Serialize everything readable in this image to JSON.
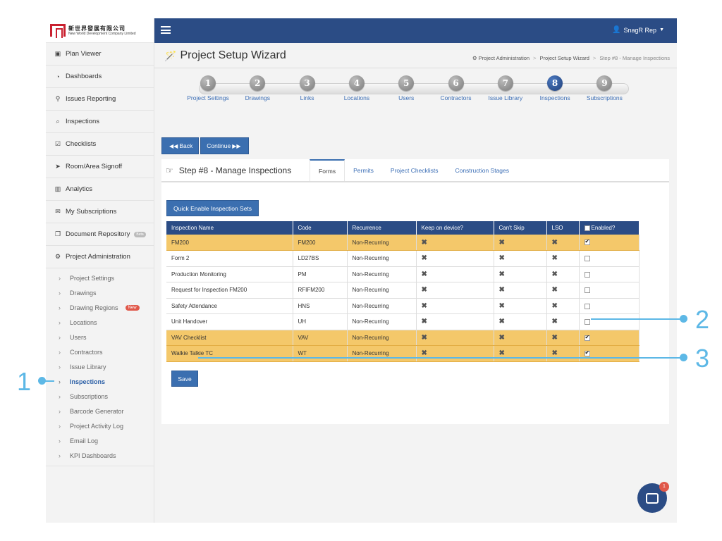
{
  "logo": {
    "cn": "新世界發展有限公司",
    "en": "New World Development Company Limited"
  },
  "sidebar": {
    "items": [
      {
        "label": "Plan Viewer",
        "icon": "image-icon",
        "glyph": "▣"
      },
      {
        "label": "Dashboards",
        "icon": "dashboard-icon",
        "glyph": "◔"
      },
      {
        "label": "Issues Reporting",
        "icon": "map-marker-icon",
        "glyph": "⚲"
      },
      {
        "label": "Inspections",
        "icon": "search-icon",
        "glyph": "⌕"
      },
      {
        "label": "Checklists",
        "icon": "checkbox-icon",
        "glyph": "☑"
      },
      {
        "label": "Room/Area Signoff",
        "icon": "send-icon",
        "glyph": "➤"
      },
      {
        "label": "Analytics",
        "icon": "bar-chart-icon",
        "glyph": "▥"
      },
      {
        "label": "My Subscriptions",
        "icon": "envelope-icon",
        "glyph": "✉"
      },
      {
        "label": "Document Repository",
        "icon": "documents-icon",
        "glyph": "❐",
        "badge": "Beta"
      },
      {
        "label": "Project Administration",
        "icon": "cogs-icon",
        "glyph": "⚙"
      }
    ],
    "sub_items": [
      {
        "label": "Project Settings"
      },
      {
        "label": "Drawings"
      },
      {
        "label": "Drawing Regions",
        "badge": "New"
      },
      {
        "label": "Locations"
      },
      {
        "label": "Users"
      },
      {
        "label": "Contractors"
      },
      {
        "label": "Issue Library"
      },
      {
        "label": "Inspections",
        "active": true
      },
      {
        "label": "Subscriptions"
      },
      {
        "label": "Barcode Generator"
      },
      {
        "label": "Project Activity Log"
      },
      {
        "label": "Email Log"
      },
      {
        "label": "KPI Dashboards"
      }
    ]
  },
  "topbar": {
    "user": "SnagR Rep"
  },
  "page": {
    "title": "Project Setup Wizard",
    "breadcrumbs": [
      "Project Administration",
      "Project Setup Wizard",
      "Step #8 - Manage Inspections"
    ]
  },
  "wizard": {
    "steps": [
      {
        "num": "1",
        "label": "Project Settings"
      },
      {
        "num": "2",
        "label": "Drawings"
      },
      {
        "num": "3",
        "label": "Links"
      },
      {
        "num": "4",
        "label": "Locations"
      },
      {
        "num": "5",
        "label": "Users"
      },
      {
        "num": "6",
        "label": "Contractors"
      },
      {
        "num": "7",
        "label": "Issue Library"
      },
      {
        "num": "8",
        "label": "Inspections",
        "active": true
      },
      {
        "num": "9",
        "label": "Subscriptions"
      }
    ],
    "back_label": "Back",
    "continue_label": "Continue"
  },
  "panel": {
    "title": "Step #8 - Manage Inspections",
    "tabs": [
      "Forms",
      "Permits",
      "Project Checklists",
      "Construction Stages"
    ],
    "active_tab": "Forms",
    "quick_enable_label": "Quick Enable Inspection Sets",
    "save_label": "Save"
  },
  "table": {
    "headers": [
      "Inspection Name",
      "Code",
      "Recurrence",
      "Keep on device?",
      "Can't Skip",
      "LSO",
      "Enabled?"
    ],
    "rows": [
      {
        "name": "FM200",
        "code": "FM200",
        "recurrence": "Non-Recurring",
        "enabled": true
      },
      {
        "name": "Form 2",
        "code": "LD27BS",
        "recurrence": "Non-Recurring",
        "enabled": false
      },
      {
        "name": "Production Monitoring",
        "code": "PM",
        "recurrence": "Non-Recurring",
        "enabled": false
      },
      {
        "name": "Request for Inspection FM200",
        "code": "RFIFM200",
        "recurrence": "Non-Recurring",
        "enabled": false
      },
      {
        "name": "Safety Attendance",
        "code": "HNS",
        "recurrence": "Non-Recurring",
        "enabled": false
      },
      {
        "name": "Unit Handover",
        "code": "UH",
        "recurrence": "Non-Recurring",
        "enabled": false
      },
      {
        "name": "VAV Checklist",
        "code": "VAV",
        "recurrence": "Non-Recurring",
        "enabled": true
      },
      {
        "name": "Walkie Talkie TC",
        "code": "WT",
        "recurrence": "Non-Recurring",
        "enabled": true
      }
    ],
    "no_mark": "✖"
  },
  "chat": {
    "badge": "1"
  },
  "callouts": [
    "1",
    "2",
    "3"
  ],
  "colors": {
    "brand": "#2b4c85",
    "accent": "#3b6fb0",
    "highlight": "#f4c86a",
    "callout": "#5db8e6",
    "badge": "#e0584a"
  }
}
